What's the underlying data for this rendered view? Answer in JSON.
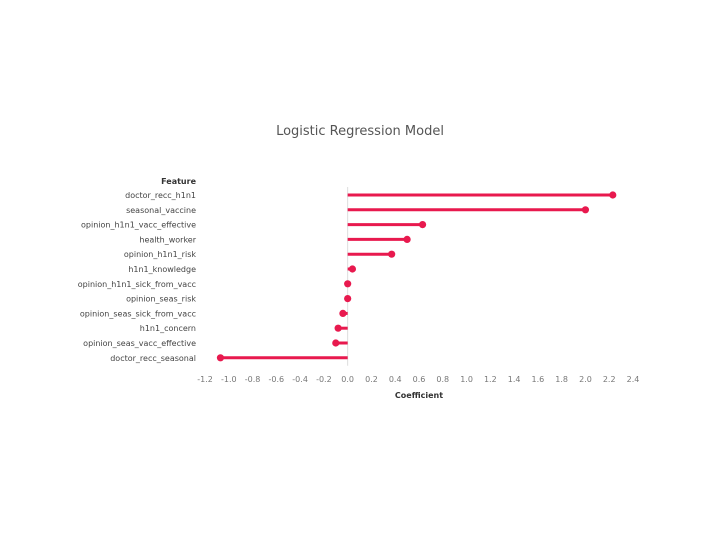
{
  "chart_data": {
    "type": "lollipop",
    "title": "Logistic Regression Model",
    "ylabel": "Feature",
    "xlabel": "Coefficient",
    "color": "#e8194e",
    "xlim": [
      -1.2,
      2.4
    ],
    "xticks": [
      "-1.2",
      "-1.0",
      "-0.8",
      "-0.6",
      "-0.4",
      "-0.2",
      "0.0",
      "0.2",
      "0.4",
      "0.6",
      "0.8",
      "1.0",
      "1.2",
      "1.4",
      "1.6",
      "1.8",
      "2.0",
      "2.2",
      "2.4"
    ],
    "categories": [
      "doctor_recc_h1n1",
      "seasonal_vaccine",
      "opinion_h1n1_vacc_effective",
      "health_worker",
      "opinion_h1n1_risk",
      "h1n1_knowledge",
      "opinion_h1n1_sick_from_vacc",
      "opinion_seas_risk",
      "opinion_seas_sick_from_vacc",
      "h1n1_concern",
      "opinion_seas_vacc_effective",
      "doctor_recc_seasonal"
    ],
    "values": [
      2.23,
      2.0,
      0.63,
      0.5,
      0.37,
      0.04,
      0.0,
      0.0,
      -0.04,
      -0.08,
      -0.1,
      -1.07
    ],
    "grid": false,
    "legend": "none"
  }
}
